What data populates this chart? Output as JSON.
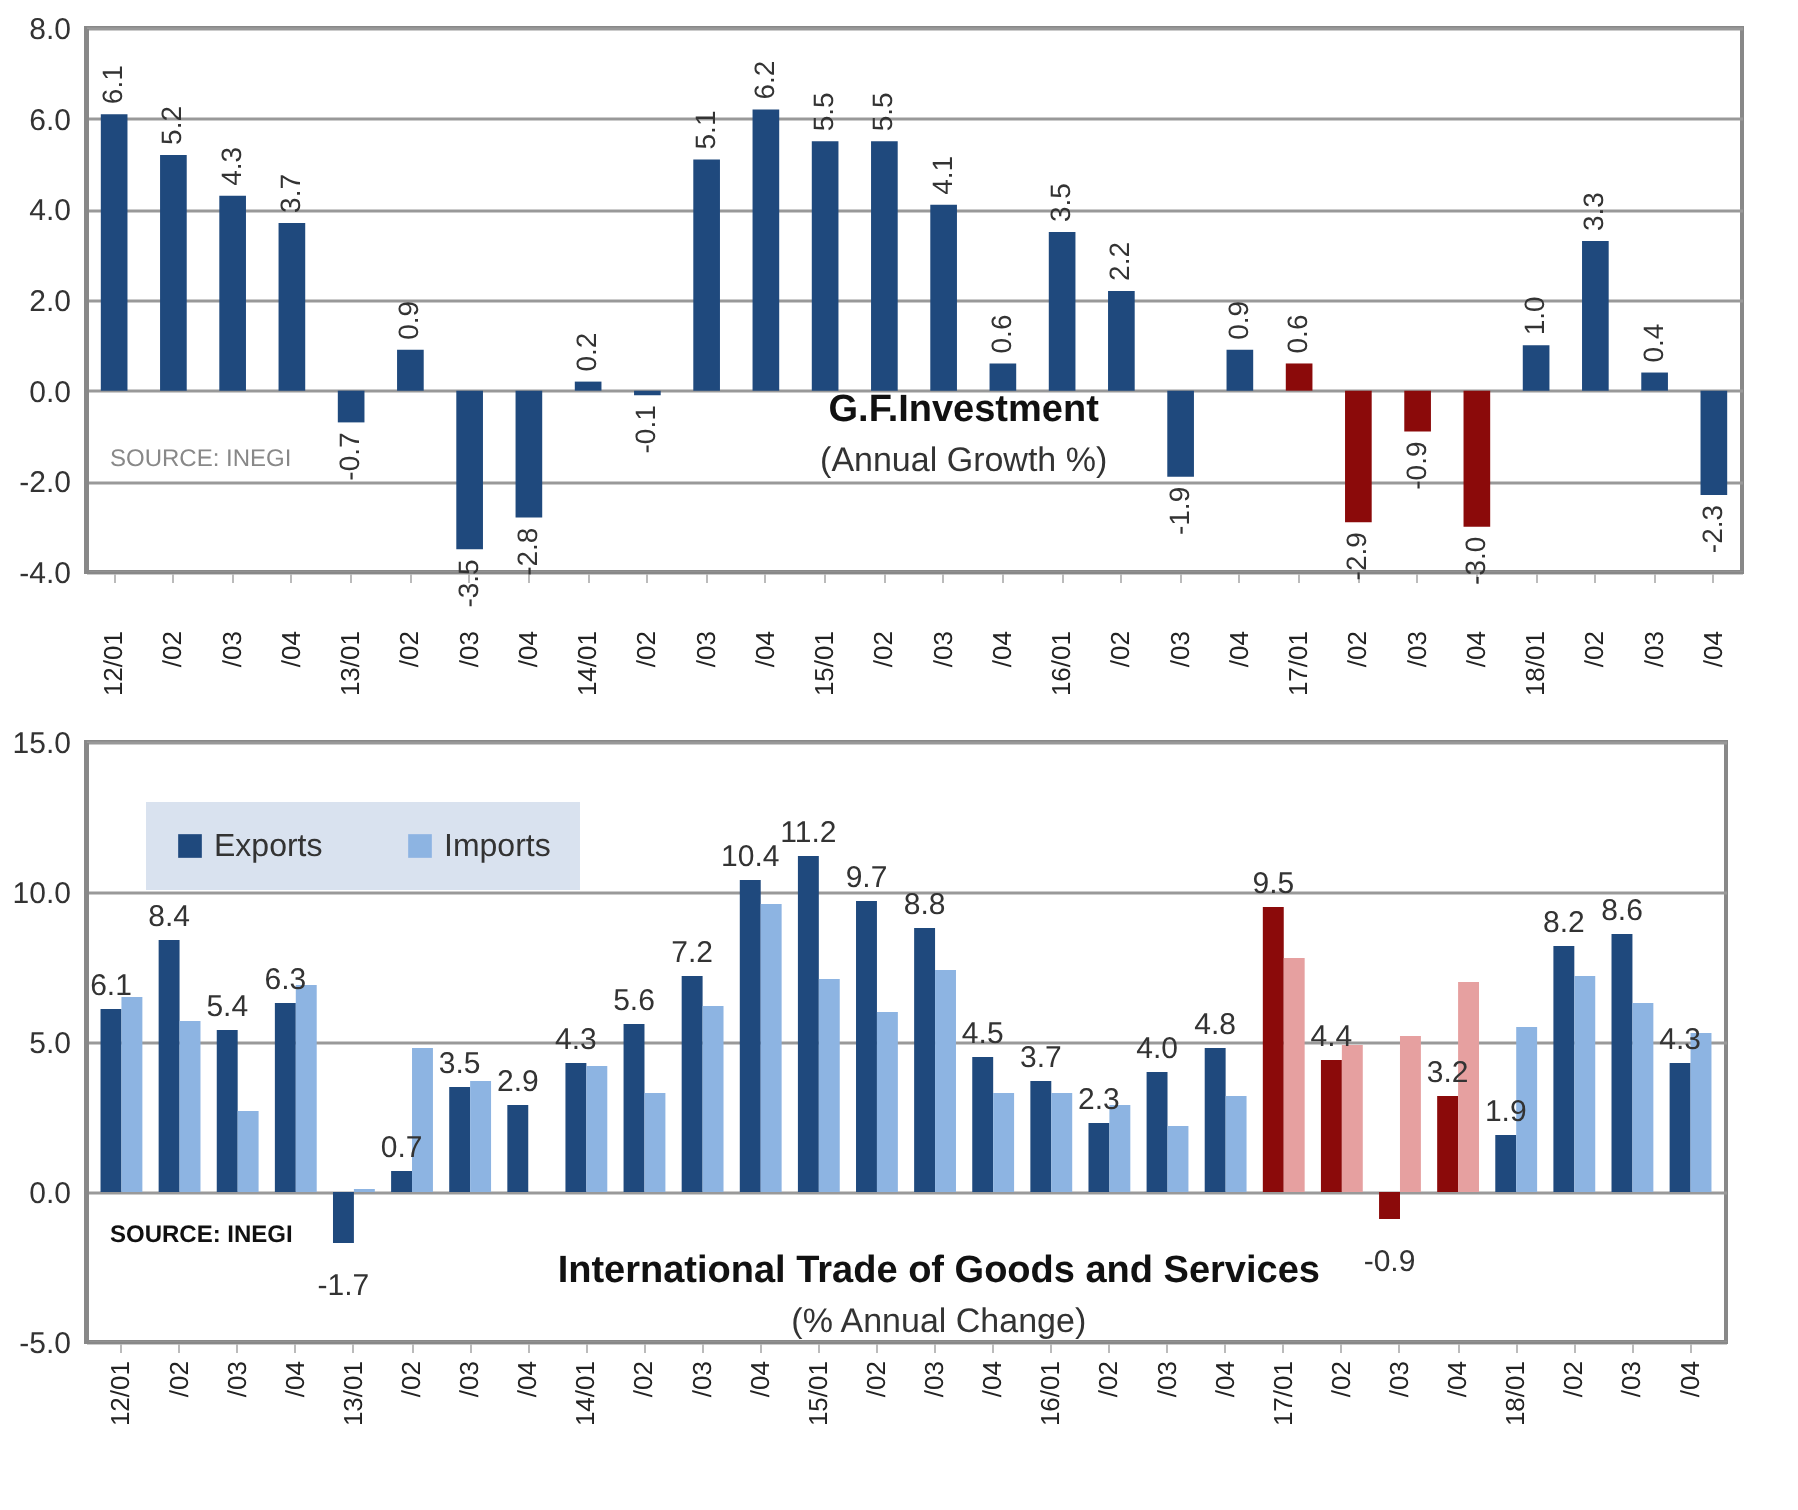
{
  "chart_data": [
    {
      "type": "bar",
      "title": "G.F.Investment",
      "subtitle": "(Annual Growth %)",
      "categories": [
        "12/01",
        "/02",
        "/03",
        "/04",
        "13/01",
        "/02",
        "/03",
        "/04",
        "14/01",
        "/02",
        "/03",
        "/04",
        "15/01",
        "/02",
        "/03",
        "/04",
        "16/01",
        "/02",
        "/03",
        "/04",
        "17/01",
        "/02",
        "/03",
        "/04",
        "18/01",
        "/02",
        "/03",
        "/04"
      ],
      "values": [
        6.1,
        5.2,
        4.3,
        3.7,
        -0.7,
        0.9,
        -3.5,
        -2.8,
        0.2,
        -0.1,
        5.1,
        6.2,
        5.5,
        5.5,
        4.1,
        0.6,
        3.5,
        2.2,
        -1.9,
        0.9,
        0.6,
        -2.9,
        -0.9,
        -3.0,
        1.0,
        3.3,
        0.4,
        -2.3
      ],
      "colors": [
        "#1f497d",
        "#1f497d",
        "#1f497d",
        "#1f497d",
        "#1f497d",
        "#1f497d",
        "#1f497d",
        "#1f497d",
        "#1f497d",
        "#1f497d",
        "#1f497d",
        "#1f497d",
        "#1f497d",
        "#1f497d",
        "#1f497d",
        "#1f497d",
        "#1f497d",
        "#1f497d",
        "#1f497d",
        "#1f497d",
        "#8b0a0a",
        "#8b0a0a",
        "#8b0a0a",
        "#8b0a0a",
        "#1f497d",
        "#1f497d",
        "#1f497d",
        "#1f497d"
      ],
      "value_labels": [
        "6.1",
        "5.2",
        "4.3",
        "3.7",
        "-0.7",
        "0.9",
        "-3.5",
        "-2.8",
        "0.2",
        "-0.1",
        "5.1",
        "6.2",
        "5.5",
        "5.5",
        "4.1",
        "0.6",
        "3.5",
        "2.2",
        "-1.9",
        "0.9",
        "0.6",
        "-2.9",
        "-0.9",
        "-3.0",
        "1.0",
        "3.3",
        "0.4",
        "-2.3"
      ],
      "ylim": [
        -4,
        8
      ],
      "yticks": [
        {
          "value": -4,
          "label": "-4.0"
        },
        {
          "value": -2,
          "label": "-2.0"
        },
        {
          "value": 0,
          "label": "0.0"
        },
        {
          "value": 2,
          "label": "2.0"
        },
        {
          "value": 4,
          "label": "4.0"
        },
        {
          "value": 6,
          "label": "6.0"
        },
        {
          "value": 8,
          "label": "8.0"
        }
      ],
      "grid": "y",
      "annotations": [
        "SOURCE: INEGI"
      ]
    },
    {
      "type": "bar",
      "title": "International Trade of Goods and Services",
      "subtitle": "(% Annual Change)",
      "categories": [
        "12/01",
        "/02",
        "/03",
        "/04",
        "13/01",
        "/02",
        "/03",
        "/04",
        "14/01",
        "/02",
        "/03",
        "/04",
        "15/01",
        "/02",
        "/03",
        "/04",
        "16/01",
        "/02",
        "/03",
        "/04",
        "17/01",
        "/02",
        "/03",
        "/04",
        "18/01",
        "/02",
        "/03",
        "/04"
      ],
      "series": [
        {
          "name": "Exports",
          "color": "#1f497d",
          "colors": [
            "#1f497d",
            "#1f497d",
            "#1f497d",
            "#1f497d",
            "#1f497d",
            "#1f497d",
            "#1f497d",
            "#1f497d",
            "#1f497d",
            "#1f497d",
            "#1f497d",
            "#1f497d",
            "#1f497d",
            "#1f497d",
            "#1f497d",
            "#1f497d",
            "#1f497d",
            "#1f497d",
            "#1f497d",
            "#1f497d",
            "#8b0a0a",
            "#8b0a0a",
            "#8b0a0a",
            "#8b0a0a",
            "#1f497d",
            "#1f497d",
            "#1f497d",
            "#1f497d"
          ],
          "values": [
            6.1,
            8.4,
            5.4,
            6.3,
            -1.7,
            0.7,
            3.5,
            2.9,
            4.3,
            5.6,
            7.2,
            10.4,
            11.2,
            9.7,
            8.8,
            4.5,
            3.7,
            2.3,
            4.0,
            4.8,
            9.5,
            4.4,
            -0.9,
            3.2,
            1.9,
            8.2,
            8.6,
            4.3
          ],
          "value_labels": [
            "6.1",
            "8.4",
            "5.4",
            "6.3",
            "-1.7",
            "0.7",
            "3.5",
            "2.9",
            "4.3",
            "5.6",
            "7.2",
            "10.4",
            "11.2",
            "9.7",
            "8.8",
            "4.5",
            "3.7",
            "2.3",
            "4.0",
            "4.8",
            "9.5",
            "4.4",
            "-0.9",
            "3.2",
            "1.9",
            "8.2",
            "8.6",
            "4.3"
          ]
        },
        {
          "name": "Imports",
          "color": "#8db4e2",
          "colors": [
            "#8db4e2",
            "#8db4e2",
            "#8db4e2",
            "#8db4e2",
            "#8db4e2",
            "#8db4e2",
            "#8db4e2",
            "#8db4e2",
            "#8db4e2",
            "#8db4e2",
            "#8db4e2",
            "#8db4e2",
            "#8db4e2",
            "#8db4e2",
            "#8db4e2",
            "#8db4e2",
            "#8db4e2",
            "#8db4e2",
            "#8db4e2",
            "#8db4e2",
            "#e6a0a0",
            "#e6a0a0",
            "#e6a0a0",
            "#e6a0a0",
            "#8db4e2",
            "#8db4e2",
            "#8db4e2",
            "#8db4e2"
          ],
          "values": [
            6.5,
            5.7,
            2.7,
            6.9,
            0.1,
            4.8,
            3.7,
            0.0,
            4.2,
            3.3,
            6.2,
            9.6,
            7.1,
            6.0,
            7.4,
            3.3,
            3.3,
            2.9,
            2.2,
            3.2,
            7.8,
            4.9,
            5.2,
            7.0,
            5.5,
            7.2,
            6.3,
            5.3
          ]
        }
      ],
      "legend": "top left",
      "ylim": [
        -5,
        15
      ],
      "yticks": [
        {
          "value": -5,
          "label": "-5.0"
        },
        {
          "value": 0,
          "label": "0.0"
        },
        {
          "value": 5,
          "label": "5.0"
        },
        {
          "value": 10,
          "label": "10.0"
        },
        {
          "value": 15,
          "label": "15.0"
        }
      ],
      "grid": "y",
      "annotations": [
        "SOURCE: INEGI"
      ]
    }
  ]
}
